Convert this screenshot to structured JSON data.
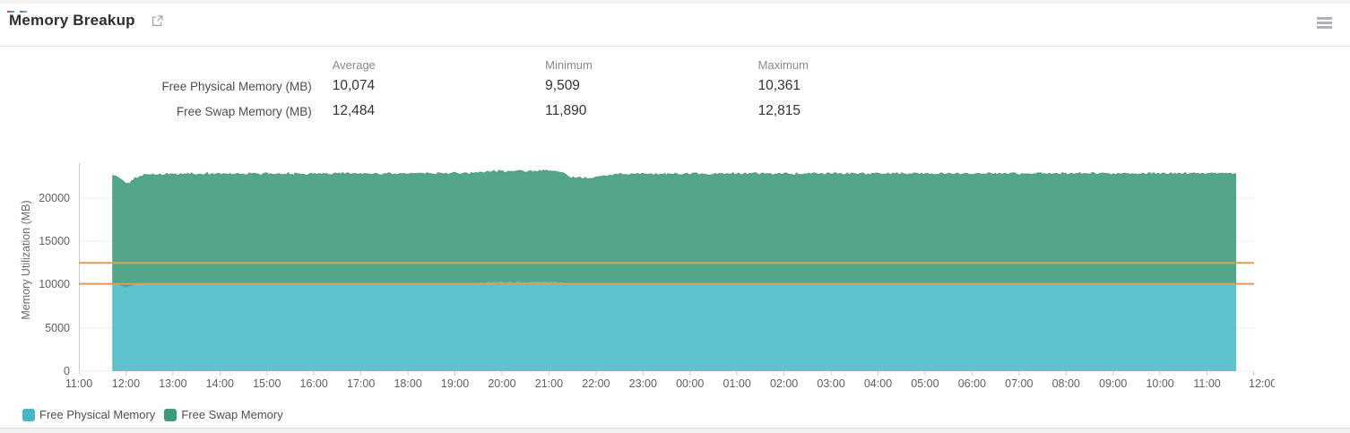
{
  "header": {
    "title": "Memory Breakup",
    "icons": {
      "external_link": "open-in-new",
      "menu": "hamburger-menu"
    }
  },
  "stats_table": {
    "columns": [
      "Average",
      "Minimum",
      "Maximum"
    ],
    "rows": [
      {
        "label": "Free Physical Memory (MB)",
        "average": "10,074",
        "minimum": "9,509",
        "maximum": "10,361"
      },
      {
        "label": "Free Swap Memory (MB)",
        "average": "12,484",
        "minimum": "11,890",
        "maximum": "12,815"
      }
    ]
  },
  "chart_data": {
    "type": "area",
    "stacking": "normal",
    "title": "",
    "xlabel": "",
    "ylabel": "Memory Utilization (MB)",
    "ylim": [
      0,
      24000
    ],
    "yticks": [
      0,
      5000,
      10000,
      15000,
      20000
    ],
    "ytick_labels": [
      "0",
      "5000",
      "10000",
      "15000",
      "20000"
    ],
    "x_tick_labels": [
      "11:00",
      "12:00",
      "13:00",
      "14:00",
      "15:00",
      "16:00",
      "17:00",
      "18:00",
      "19:00",
      "20:00",
      "21:00",
      "22:00",
      "23:00",
      "00:00",
      "01:00",
      "02:00",
      "03:00",
      "04:00",
      "05:00",
      "06:00",
      "07:00",
      "08:00",
      "09:00",
      "10:00",
      "11:00",
      "12:00"
    ],
    "x_axis_span_hours": 25,
    "data_start_hour": 0.71,
    "data_end_hour": 24.62,
    "grid": "horizontal",
    "legend_position": "bottom-left",
    "series": [
      {
        "name": "Free Physical Memory",
        "legend_color": "#45b8c3",
        "fill_color": "#5fc3cd",
        "avg": 10074,
        "min": 9509,
        "max": 10361,
        "keyframes_hour_value": [
          [
            0.71,
            10060
          ],
          [
            0.88,
            9850
          ],
          [
            1.0,
            9560
          ],
          [
            1.2,
            10010
          ],
          [
            2,
            10070
          ],
          [
            8.45,
            10090
          ],
          [
            8.65,
            10250
          ],
          [
            10.25,
            10250
          ],
          [
            10.45,
            10070
          ],
          [
            16,
            10060
          ],
          [
            24.62,
            10060
          ]
        ],
        "noise_mb": 65
      },
      {
        "name": "Free Swap Memory",
        "legend_color": "#3d9a7c",
        "fill_color": "#54a68a",
        "edge_color": "#3c8e71",
        "avg": 12484,
        "min": 11890,
        "max": 12815,
        "keyframes_hour_value": [
          [
            0.71,
            12620
          ],
          [
            0.9,
            12250
          ],
          [
            1.05,
            11890
          ],
          [
            1.35,
            12600
          ],
          [
            2,
            12680
          ],
          [
            8.4,
            12700
          ],
          [
            8.7,
            12815
          ],
          [
            10.2,
            12815
          ],
          [
            10.5,
            12280
          ],
          [
            10.9,
            12140
          ],
          [
            11.4,
            12660
          ],
          [
            16,
            12720
          ],
          [
            24.62,
            12730
          ]
        ],
        "noise_mb": 110
      }
    ],
    "plot_lines": [
      {
        "value": 12484,
        "color": "#e09a5a"
      },
      {
        "value": 10074,
        "color": "#e09a5a"
      }
    ]
  },
  "legend": {
    "items": [
      {
        "label": "Free Physical Memory",
        "color": "#45b8c3"
      },
      {
        "label": "Free Swap Memory",
        "color": "#3d9a7c"
      }
    ]
  },
  "colors": {
    "grid": "#ededed",
    "axis": "#cccccc",
    "plotline": "#e09a5a"
  }
}
